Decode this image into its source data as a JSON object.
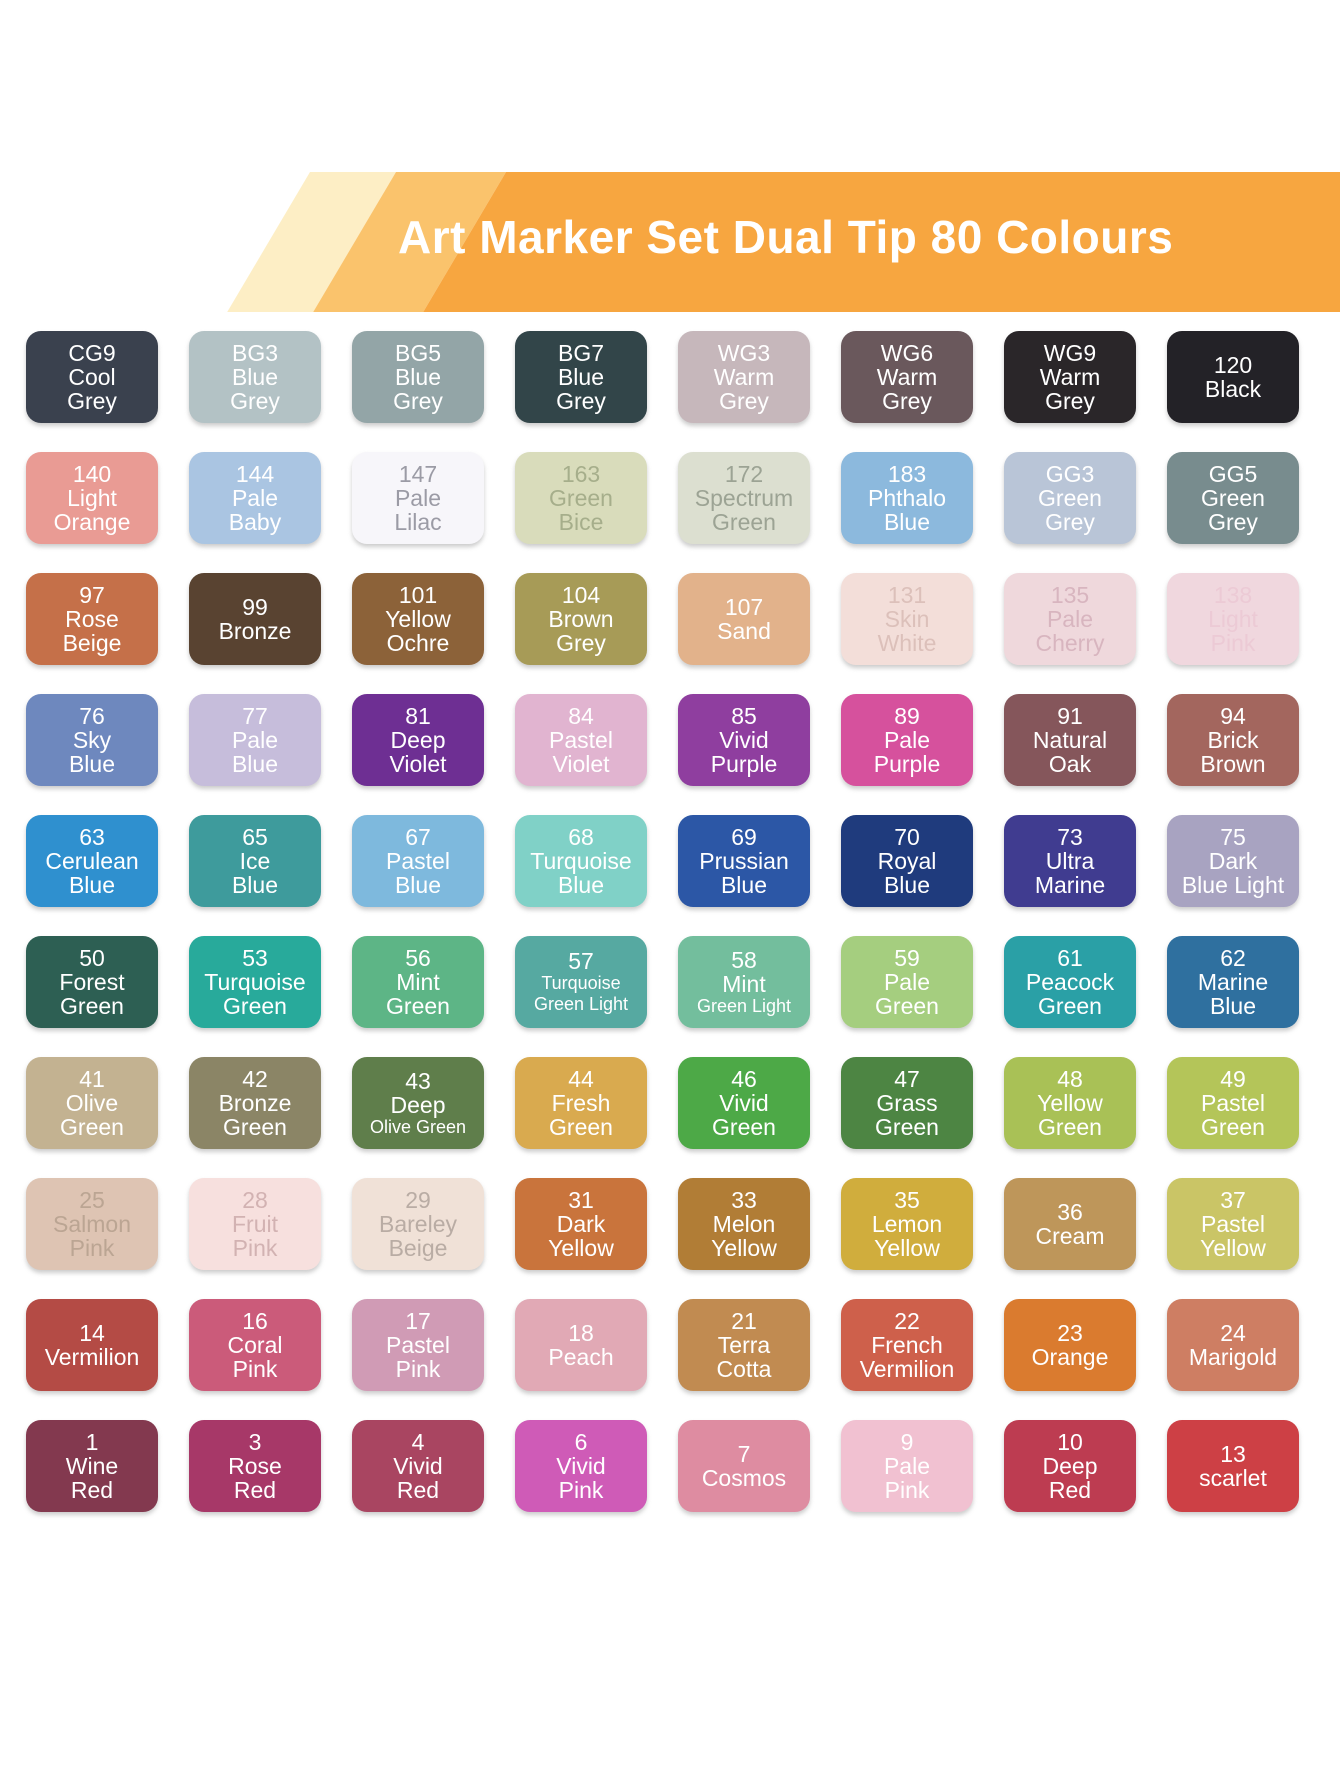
{
  "header": {
    "title": "Art Marker Set Dual Tip 80 Colours",
    "title_color": "#ffffff",
    "banner_color": "#f7a640",
    "stripe_light_orange": "#fac36c",
    "stripe_cream": "#fdeec5"
  },
  "swatch_grid": {
    "rows": [
      [
        {
          "code": "CG9",
          "name": "Cool Grey",
          "lines": [
            "CG9",
            "Cool",
            "Grey"
          ],
          "bg": "#3a414e",
          "fg": "#ffffff"
        },
        {
          "code": "BG3",
          "name": "Blue Grey",
          "lines": [
            "BG3",
            "Blue",
            "Grey"
          ],
          "bg": "#b3c2c5",
          "fg": "#ffffff"
        },
        {
          "code": "BG5",
          "name": "Blue Grey",
          "lines": [
            "BG5",
            "Blue",
            "Grey"
          ],
          "bg": "#93a5a7",
          "fg": "#ffffff"
        },
        {
          "code": "BG7",
          "name": "Blue Grey",
          "lines": [
            "BG7",
            "Blue",
            "Grey"
          ],
          "bg": "#324549",
          "fg": "#ffffff"
        },
        {
          "code": "WG3",
          "name": "Warm Grey",
          "lines": [
            "WG3",
            "Warm",
            "Grey"
          ],
          "bg": "#c6b7bb",
          "fg": "#ffffff"
        },
        {
          "code": "WG6",
          "name": "Warm Grey",
          "lines": [
            "WG6",
            "Warm",
            "Grey"
          ],
          "bg": "#6a585c",
          "fg": "#ffffff"
        },
        {
          "code": "WG9",
          "name": "Warm Grey",
          "lines": [
            "WG9",
            "Warm",
            "Grey"
          ],
          "bg": "#2a2629",
          "fg": "#ffffff"
        },
        {
          "code": "120",
          "name": "Black",
          "lines": [
            "120",
            "Black"
          ],
          "bg": "#232227",
          "fg": "#ffffff"
        }
      ],
      [
        {
          "code": "140",
          "name": "Light Orange",
          "lines": [
            "140",
            "Light",
            "Orange"
          ],
          "bg": "#e99b94",
          "fg": "#ffffff"
        },
        {
          "code": "144",
          "name": "Pale Baby",
          "lines": [
            "144",
            "Pale",
            "Baby"
          ],
          "bg": "#aac5e2",
          "fg": "#ffffff"
        },
        {
          "code": "147",
          "name": "Pale Lilac",
          "lines": [
            "147",
            "Pale",
            "Lilac"
          ],
          "bg": "#f7f6fa",
          "fg": "#9b9ba5"
        },
        {
          "code": "163",
          "name": "Green Bice",
          "lines": [
            "163",
            "Green",
            "Bice"
          ],
          "bg": "#d9dcbb",
          "fg": "#a6ae8b"
        },
        {
          "code": "172",
          "name": "Spectrum Green",
          "lines": [
            "172",
            "Spectrum",
            "Green"
          ],
          "bg": "#dcdfd0",
          "fg": "#9ca394"
        },
        {
          "code": "183",
          "name": "Phthalo Blue",
          "lines": [
            "183",
            "Phthalo",
            "Blue"
          ],
          "bg": "#8cb9dd",
          "fg": "#ffffff"
        },
        {
          "code": "GG3",
          "name": "Green Grey",
          "lines": [
            "GG3",
            "Green",
            "Grey"
          ],
          "bg": "#b9c5d7",
          "fg": "#ffffff"
        },
        {
          "code": "GG5",
          "name": "Green Grey",
          "lines": [
            "GG5",
            "Green",
            "Grey"
          ],
          "bg": "#788c8e",
          "fg": "#ffffff"
        }
      ],
      [
        {
          "code": "97",
          "name": "Rose Beige",
          "lines": [
            "97",
            "Rose",
            "Beige"
          ],
          "bg": "#c57049",
          "fg": "#ffffff"
        },
        {
          "code": "99",
          "name": "Bronze",
          "lines": [
            "99",
            "Bronze"
          ],
          "bg": "#594331",
          "fg": "#ffffff"
        },
        {
          "code": "101",
          "name": "Yellow Ochre",
          "lines": [
            "101",
            "Yellow",
            "Ochre"
          ],
          "bg": "#8c6239",
          "fg": "#ffffff"
        },
        {
          "code": "104",
          "name": "Brown Grey",
          "lines": [
            "104",
            "Brown",
            "Grey"
          ],
          "bg": "#a79b57",
          "fg": "#ffffff"
        },
        {
          "code": "107",
          "name": "Sand",
          "lines": [
            "107",
            "Sand"
          ],
          "bg": "#e2b28b",
          "fg": "#ffffff"
        },
        {
          "code": "131",
          "name": "Skin White",
          "lines": [
            "131",
            "Skin",
            "White"
          ],
          "bg": "#f3ded9",
          "fg": "#dcc0ba"
        },
        {
          "code": "135",
          "name": "Pale Cherry",
          "lines": [
            "135",
            "Pale",
            "Cherry"
          ],
          "bg": "#efd8dc",
          "fg": "#d8b5bf"
        },
        {
          "code": "138",
          "name": "Light Pink",
          "lines": [
            "138",
            "Light",
            "Pink"
          ],
          "bg": "#f0d7de",
          "fg": "#eccad5"
        }
      ],
      [
        {
          "code": "76",
          "name": "Sky Blue",
          "lines": [
            "76",
            "Sky",
            "Blue"
          ],
          "bg": "#6e88be",
          "fg": "#ffffff"
        },
        {
          "code": "77",
          "name": "Pale Blue",
          "lines": [
            "77",
            "Pale",
            "Blue"
          ],
          "bg": "#c6bddb",
          "fg": "#ffffff"
        },
        {
          "code": "81",
          "name": "Deep Violet",
          "lines": [
            "81",
            "Deep",
            "Violet"
          ],
          "bg": "#6e2f93",
          "fg": "#ffffff"
        },
        {
          "code": "84",
          "name": "Pastel Violet",
          "lines": [
            "84",
            "Pastel",
            "Violet"
          ],
          "bg": "#e1b4d0",
          "fg": "#ffffff"
        },
        {
          "code": "85",
          "name": "Vivid Purple",
          "lines": [
            "85",
            "Vivid",
            "Purple"
          ],
          "bg": "#8f3e9f",
          "fg": "#ffffff"
        },
        {
          "code": "89",
          "name": "Pale Purple",
          "lines": [
            "89",
            "Pale",
            "Purple"
          ],
          "bg": "#d6519d",
          "fg": "#ffffff"
        },
        {
          "code": "91",
          "name": "Natural Oak",
          "lines": [
            "91",
            "Natural",
            "Oak"
          ],
          "bg": "#85565b",
          "fg": "#ffffff"
        },
        {
          "code": "94",
          "name": "Brick Brown",
          "lines": [
            "94",
            "Brick",
            "Brown"
          ],
          "bg": "#a3665e",
          "fg": "#ffffff"
        }
      ],
      [
        {
          "code": "63",
          "name": "Cerulean Blue",
          "lines": [
            "63",
            "Cerulean",
            "Blue"
          ],
          "bg": "#2f90cf",
          "fg": "#ffffff"
        },
        {
          "code": "65",
          "name": "Ice Blue",
          "lines": [
            "65",
            "Ice",
            "Blue"
          ],
          "bg": "#3e9b9c",
          "fg": "#ffffff"
        },
        {
          "code": "67",
          "name": "Pastel Blue",
          "lines": [
            "67",
            "Pastel",
            "Blue"
          ],
          "bg": "#7eb9dd",
          "fg": "#ffffff"
        },
        {
          "code": "68",
          "name": "Turquoise Blue",
          "lines": [
            "68",
            "Turquoise",
            "Blue"
          ],
          "bg": "#80d1c7",
          "fg": "#ffffff"
        },
        {
          "code": "69",
          "name": "Prussian Blue",
          "lines": [
            "69",
            "Prussian",
            "Blue"
          ],
          "bg": "#2c57a6",
          "fg": "#ffffff"
        },
        {
          "code": "70",
          "name": "Royal Blue",
          "lines": [
            "70",
            "Royal",
            "Blue"
          ],
          "bg": "#1f3b7d",
          "fg": "#ffffff"
        },
        {
          "code": "73",
          "name": "Ultra Marine",
          "lines": [
            "73",
            "Ultra",
            "Marine"
          ],
          "bg": "#403c90",
          "fg": "#ffffff"
        },
        {
          "code": "75",
          "name": "Dark Blue Light",
          "lines": [
            "75",
            "Dark",
            "Blue Light"
          ],
          "bg": "#a8a3c1",
          "fg": "#ffffff"
        }
      ],
      [
        {
          "code": "50",
          "name": "Forest Green",
          "lines": [
            "50",
            "Forest",
            "Green"
          ],
          "bg": "#2d5f53",
          "fg": "#ffffff"
        },
        {
          "code": "53",
          "name": "Turquoise Green",
          "lines": [
            "53",
            "Turquoise",
            "Green"
          ],
          "bg": "#28aa9b",
          "fg": "#ffffff"
        },
        {
          "code": "56",
          "name": "Mint Green",
          "lines": [
            "56",
            "Mint",
            "Green"
          ],
          "bg": "#5db586",
          "fg": "#ffffff"
        },
        {
          "code": "57",
          "name": "Turquoise Green Light",
          "lines": [
            "57",
            "Turquoise",
            "Green Light"
          ],
          "small": [
            1,
            2
          ],
          "bg": "#56a9a1",
          "fg": "#ffffff"
        },
        {
          "code": "58",
          "name": "Mint Green Light",
          "lines": [
            "58",
            "Mint",
            "Green Light"
          ],
          "small": [
            2
          ],
          "bg": "#73be9d",
          "fg": "#ffffff"
        },
        {
          "code": "59",
          "name": "Pale Green",
          "lines": [
            "59",
            "Pale",
            "Green"
          ],
          "bg": "#a5ce7f",
          "fg": "#ffffff"
        },
        {
          "code": "61",
          "name": "Peacock Green",
          "lines": [
            "61",
            "Peacock",
            "Green"
          ],
          "bg": "#2aa0a6",
          "fg": "#ffffff"
        },
        {
          "code": "62",
          "name": "Marine Blue",
          "lines": [
            "62",
            "Marine",
            "Blue"
          ],
          "bg": "#2f709f",
          "fg": "#ffffff"
        }
      ],
      [
        {
          "code": "41",
          "name": "Olive Green",
          "lines": [
            "41",
            "Olive",
            "Green"
          ],
          "bg": "#c3b291",
          "fg": "#ffffff"
        },
        {
          "code": "42",
          "name": "Bronze Green",
          "lines": [
            "42",
            "Bronze",
            "Green"
          ],
          "bg": "#8b8566",
          "fg": "#ffffff"
        },
        {
          "code": "43",
          "name": "Deep Olive Green",
          "lines": [
            "43",
            "Deep",
            "Olive Green"
          ],
          "small": [
            2
          ],
          "bg": "#5f7e4b",
          "fg": "#ffffff"
        },
        {
          "code": "44",
          "name": "Fresh Green",
          "lines": [
            "44",
            "Fresh",
            "Green"
          ],
          "bg": "#d9aa4f",
          "fg": "#ffffff"
        },
        {
          "code": "46",
          "name": "Vivid Green",
          "lines": [
            "46",
            "Vivid",
            "Green"
          ],
          "bg": "#4da947",
          "fg": "#ffffff"
        },
        {
          "code": "47",
          "name": "Grass Green",
          "lines": [
            "47",
            "Grass",
            "Green"
          ],
          "bg": "#4d8543",
          "fg": "#ffffff"
        },
        {
          "code": "48",
          "name": "Yellow Green",
          "lines": [
            "48",
            "Yellow",
            "Green"
          ],
          "bg": "#a9c156",
          "fg": "#ffffff"
        },
        {
          "code": "49",
          "name": "Pastel Green",
          "lines": [
            "49",
            "Pastel",
            "Green"
          ],
          "bg": "#b4c559",
          "fg": "#ffffff"
        }
      ],
      [
        {
          "code": "25",
          "name": "Salmon Pink",
          "lines": [
            "25",
            "Salmon",
            "Pink"
          ],
          "bg": "#dec4b3",
          "fg": "#bba593"
        },
        {
          "code": "28",
          "name": "Fruit Pink",
          "lines": [
            "28",
            "Fruit",
            "Pink"
          ],
          "bg": "#f7e0de",
          "fg": "#d2b2b2"
        },
        {
          "code": "29",
          "name": "Bareley Beige",
          "lines": [
            "29",
            "Bareley",
            "Beige"
          ],
          "bg": "#f0e1d7",
          "fg": "#b9aca4"
        },
        {
          "code": "31",
          "name": "Dark Yellow",
          "lines": [
            "31",
            "Dark",
            "Yellow"
          ],
          "bg": "#c9743c",
          "fg": "#ffffff"
        },
        {
          "code": "33",
          "name": "Melon Yellow",
          "lines": [
            "33",
            "Melon",
            "Yellow"
          ],
          "bg": "#b17d36",
          "fg": "#ffffff"
        },
        {
          "code": "35",
          "name": "Lemon Yellow",
          "lines": [
            "35",
            "Lemon",
            "Yellow"
          ],
          "bg": "#d0ad3d",
          "fg": "#ffffff"
        },
        {
          "code": "36",
          "name": "Cream",
          "lines": [
            "36",
            "Cream"
          ],
          "bg": "#be965a",
          "fg": "#ffffff"
        },
        {
          "code": "37",
          "name": "Pastel Yellow",
          "lines": [
            "37",
            "Pastel",
            "Yellow"
          ],
          "bg": "#cac566",
          "fg": "#ffffff"
        }
      ],
      [
        {
          "code": "14",
          "name": "Vermilion",
          "lines": [
            "14",
            "Vermilion"
          ],
          "bg": "#b44b45",
          "fg": "#ffffff"
        },
        {
          "code": "16",
          "name": "Coral Pink",
          "lines": [
            "16",
            "Coral",
            "Pink"
          ],
          "bg": "#cb5b7a",
          "fg": "#ffffff"
        },
        {
          "code": "17",
          "name": "Pastel Pink",
          "lines": [
            "17",
            "Pastel",
            "Pink"
          ],
          "bg": "#d09bb5",
          "fg": "#ffffff"
        },
        {
          "code": "18",
          "name": "Peach",
          "lines": [
            "18",
            "Peach"
          ],
          "bg": "#e1a9b5",
          "fg": "#ffffff"
        },
        {
          "code": "21",
          "name": "Terra Cotta",
          "lines": [
            "21",
            "Terra",
            "Cotta"
          ],
          "bg": "#c18b51",
          "fg": "#ffffff"
        },
        {
          "code": "22",
          "name": "French Vermilion",
          "lines": [
            "22",
            "French",
            "Vermilion"
          ],
          "bg": "#ce604b",
          "fg": "#ffffff"
        },
        {
          "code": "23",
          "name": "Orange",
          "lines": [
            "23",
            "Orange"
          ],
          "bg": "#da7b2f",
          "fg": "#ffffff"
        },
        {
          "code": "24",
          "name": "Marigold",
          "lines": [
            "24",
            "Marigold"
          ],
          "bg": "#ce7e63",
          "fg": "#ffffff"
        }
      ],
      [
        {
          "code": "1",
          "name": "Wine Red",
          "lines": [
            "1",
            "Wine",
            "Red"
          ],
          "bg": "#83394f",
          "fg": "#ffffff"
        },
        {
          "code": "3",
          "name": "Rose Red",
          "lines": [
            "3",
            "Rose",
            "Red"
          ],
          "bg": "#a73868",
          "fg": "#ffffff"
        },
        {
          "code": "4",
          "name": "Vivid Red",
          "lines": [
            "4",
            "Vivid",
            "Red"
          ],
          "bg": "#a94561",
          "fg": "#ffffff"
        },
        {
          "code": "6",
          "name": "Vivid Pink",
          "lines": [
            "6",
            "Vivid",
            "Pink"
          ],
          "bg": "#cf5bb7",
          "fg": "#ffffff"
        },
        {
          "code": "7",
          "name": "Cosmos",
          "lines": [
            "7",
            "Cosmos"
          ],
          "bg": "#de8ca1",
          "fg": "#ffffff"
        },
        {
          "code": "9",
          "name": "Pale Pink",
          "lines": [
            "9",
            "Pale",
            "Pink"
          ],
          "bg": "#f1c1d1",
          "fg": "#ffffff"
        },
        {
          "code": "10",
          "name": "Deep Red",
          "lines": [
            "10",
            "Deep",
            "Red"
          ],
          "bg": "#bd3c51",
          "fg": "#ffffff"
        },
        {
          "code": "13",
          "name": "scarlet",
          "lines": [
            "13",
            "scarlet"
          ],
          "bg": "#cd4045",
          "fg": "#ffffff"
        }
      ]
    ]
  }
}
